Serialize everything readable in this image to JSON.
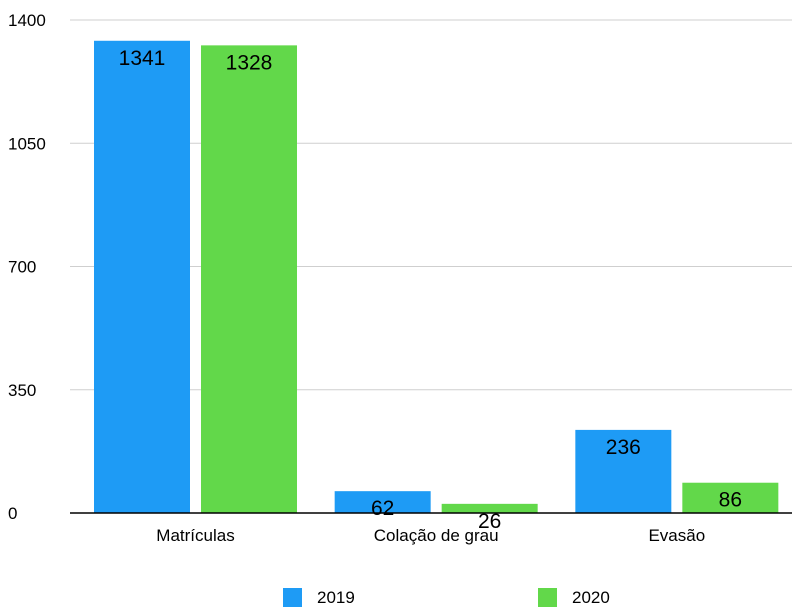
{
  "chart_data": {
    "type": "bar",
    "categories": [
      "Matrículas",
      "Colação de grau",
      "Evasão"
    ],
    "series": [
      {
        "name": "2019",
        "values": [
          1341,
          62,
          236
        ],
        "color": "#1E9BF5"
      },
      {
        "name": "2020",
        "values": [
          1328,
          26,
          86
        ],
        "color": "#62D84A"
      }
    ],
    "yticks": [
      0,
      350,
      700,
      1050,
      1400
    ],
    "ylim": [
      0,
      1400
    ],
    "grid": true,
    "legend_position": "bottom",
    "data_labels": true
  }
}
